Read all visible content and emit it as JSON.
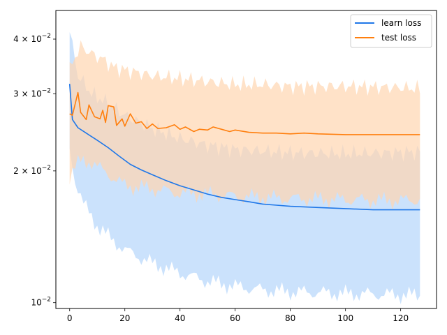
{
  "chart_data": {
    "type": "line",
    "title": "",
    "xlabel": "",
    "ylabel": "",
    "xlim": [
      -5,
      133
    ],
    "ylim": [
      0.0097,
      0.0465
    ],
    "yscale": "log",
    "xticks": [
      0,
      20,
      40,
      60,
      80,
      100,
      120
    ],
    "xtick_labels": [
      "0",
      "20",
      "40",
      "60",
      "80",
      "100",
      "120"
    ],
    "yticks": [
      0.01,
      0.02,
      0.03,
      0.04
    ],
    "ytick_labels": [
      {
        "base": "10",
        "exp": "−2",
        "prefix": ""
      },
      {
        "base": "10",
        "exp": "−2",
        "prefix": "2 × "
      },
      {
        "base": "10",
        "exp": "−2",
        "prefix": "3 × "
      },
      {
        "base": "10",
        "exp": "−2",
        "prefix": "4 × "
      }
    ],
    "grid": false,
    "legend_position": "top-right",
    "series": [
      {
        "name": "learn loss",
        "color": "#1f77e8",
        "band_color": "#a9cffa",
        "points": [
          [
            0,
            0.0316
          ],
          [
            1,
            0.0262
          ],
          [
            3,
            0.0251
          ],
          [
            6,
            0.0244
          ],
          [
            10,
            0.0235
          ],
          [
            14,
            0.0226
          ],
          [
            18,
            0.0216
          ],
          [
            22,
            0.0207
          ],
          [
            26,
            0.0201
          ],
          [
            30,
            0.0196
          ],
          [
            35,
            0.019
          ],
          [
            40,
            0.0185
          ],
          [
            45,
            0.0181
          ],
          [
            50,
            0.0177
          ],
          [
            55,
            0.0174
          ],
          [
            60,
            0.0172
          ],
          [
            65,
            0.017
          ],
          [
            70,
            0.0168
          ],
          [
            75,
            0.0167
          ],
          [
            80,
            0.0166
          ],
          [
            90,
            0.0165
          ],
          [
            100,
            0.0164
          ],
          [
            110,
            0.0163
          ],
          [
            127,
            0.0163
          ]
        ],
        "upper": [
          [
            0,
            0.0415
          ],
          [
            3,
            0.033
          ],
          [
            8,
            0.03
          ],
          [
            15,
            0.0282
          ],
          [
            20,
            0.0268
          ],
          [
            30,
            0.025
          ],
          [
            40,
            0.0237
          ],
          [
            50,
            0.0229
          ],
          [
            60,
            0.0224
          ],
          [
            70,
            0.0222
          ],
          [
            80,
            0.022
          ],
          [
            100,
            0.0219
          ],
          [
            127,
            0.0221
          ]
        ],
        "lower": [
          [
            0,
            0.0225
          ],
          [
            2,
            0.019
          ],
          [
            5,
            0.0168
          ],
          [
            10,
            0.015
          ],
          [
            15,
            0.014
          ],
          [
            20,
            0.0132
          ],
          [
            30,
            0.0123
          ],
          [
            40,
            0.0117
          ],
          [
            50,
            0.0112
          ],
          [
            60,
            0.0109
          ],
          [
            70,
            0.0107
          ],
          [
            80,
            0.0106
          ],
          [
            100,
            0.0105
          ],
          [
            127,
            0.0104
          ]
        ]
      },
      {
        "name": "test loss",
        "color": "#ff7f0e",
        "band_color": "#ffd5b0",
        "points": [
          [
            0,
            0.027
          ],
          [
            1,
            0.0268
          ],
          [
            3,
            0.0302
          ],
          [
            4,
            0.0272
          ],
          [
            6,
            0.0262
          ],
          [
            7,
            0.0283
          ],
          [
            9,
            0.0266
          ],
          [
            11,
            0.0263
          ],
          [
            12,
            0.0275
          ],
          [
            13,
            0.0258
          ],
          [
            14,
            0.0282
          ],
          [
            16,
            0.028
          ],
          [
            17,
            0.0254
          ],
          [
            19,
            0.0263
          ],
          [
            20,
            0.0253
          ],
          [
            22,
            0.027
          ],
          [
            24,
            0.0257
          ],
          [
            26,
            0.0259
          ],
          [
            28,
            0.025
          ],
          [
            30,
            0.0256
          ],
          [
            32,
            0.025
          ],
          [
            35,
            0.0251
          ],
          [
            38,
            0.0255
          ],
          [
            40,
            0.0249
          ],
          [
            42,
            0.0252
          ],
          [
            45,
            0.0246
          ],
          [
            47,
            0.0249
          ],
          [
            50,
            0.0248
          ],
          [
            52,
            0.0252
          ],
          [
            55,
            0.0249
          ],
          [
            58,
            0.0246
          ],
          [
            60,
            0.0248
          ],
          [
            65,
            0.0245
          ],
          [
            70,
            0.0244
          ],
          [
            75,
            0.0244
          ],
          [
            80,
            0.0243
          ],
          [
            85,
            0.0244
          ],
          [
            90,
            0.0243
          ],
          [
            100,
            0.0242
          ],
          [
            110,
            0.0242
          ],
          [
            120,
            0.0242
          ],
          [
            127,
            0.0242
          ]
        ],
        "upper": [
          [
            0,
            0.034
          ],
          [
            2,
            0.0365
          ],
          [
            4,
            0.0385
          ],
          [
            8,
            0.037
          ],
          [
            12,
            0.036
          ],
          [
            16,
            0.0345
          ],
          [
            20,
            0.034
          ],
          [
            30,
            0.033
          ],
          [
            40,
            0.0325
          ],
          [
            50,
            0.032
          ],
          [
            60,
            0.0315
          ],
          [
            70,
            0.0315
          ],
          [
            80,
            0.0312
          ],
          [
            100,
            0.0312
          ],
          [
            120,
            0.031
          ],
          [
            127,
            0.0308
          ]
        ],
        "lower": [
          [
            0,
            0.0195
          ],
          [
            2,
            0.0205
          ],
          [
            4,
            0.021
          ],
          [
            8,
            0.021
          ],
          [
            12,
            0.02
          ],
          [
            16,
            0.0193
          ],
          [
            20,
            0.0185
          ],
          [
            30,
            0.0182
          ],
          [
            40,
            0.0178
          ],
          [
            50,
            0.0177
          ],
          [
            60,
            0.0175
          ],
          [
            70,
            0.0174
          ],
          [
            80,
            0.0173
          ],
          [
            100,
            0.0172
          ],
          [
            120,
            0.0171
          ],
          [
            127,
            0.0172
          ]
        ]
      }
    ]
  }
}
